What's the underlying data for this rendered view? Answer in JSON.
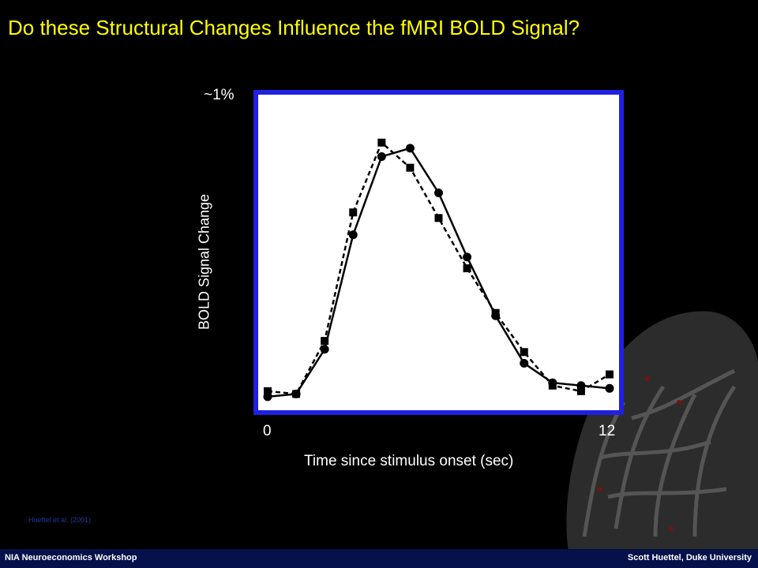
{
  "slide": {
    "title": "Do these Structural Changes Influence the fMRI BOLD Signal?",
    "citation": "Huettel et al. (2001)"
  },
  "footer": {
    "left": "NIA Neuroeconomics Workshop",
    "right": "Scott Huettel, Duke University"
  },
  "colors": {
    "title": "#ffff00",
    "frame": "#2020e0",
    "footer_bg": "#04114a"
  },
  "chart_data": {
    "type": "line",
    "ylabel": "BOLD Signal Change",
    "xlabel": "Time since stimulus onset (sec)",
    "y_top_label": "~1%",
    "x_tick_labels": [
      "0",
      "12"
    ],
    "xlim": [
      0,
      12
    ],
    "ylim": [
      0,
      1
    ],
    "series": [
      {
        "style": "solid",
        "marker": "circle",
        "x": [
          0,
          1,
          2,
          3,
          4,
          5,
          6,
          7,
          8,
          9,
          10,
          11,
          12
        ],
        "y": [
          0.02,
          0.03,
          0.19,
          0.6,
          0.88,
          0.91,
          0.75,
          0.52,
          0.31,
          0.14,
          0.07,
          0.06,
          0.05
        ]
      },
      {
        "style": "dashed",
        "marker": "square",
        "x": [
          0,
          1,
          2,
          3,
          4,
          5,
          6,
          7,
          8,
          9,
          10,
          11,
          12
        ],
        "y": [
          0.04,
          0.03,
          0.22,
          0.68,
          0.93,
          0.84,
          0.66,
          0.48,
          0.32,
          0.18,
          0.06,
          0.04,
          0.1
        ]
      }
    ]
  }
}
